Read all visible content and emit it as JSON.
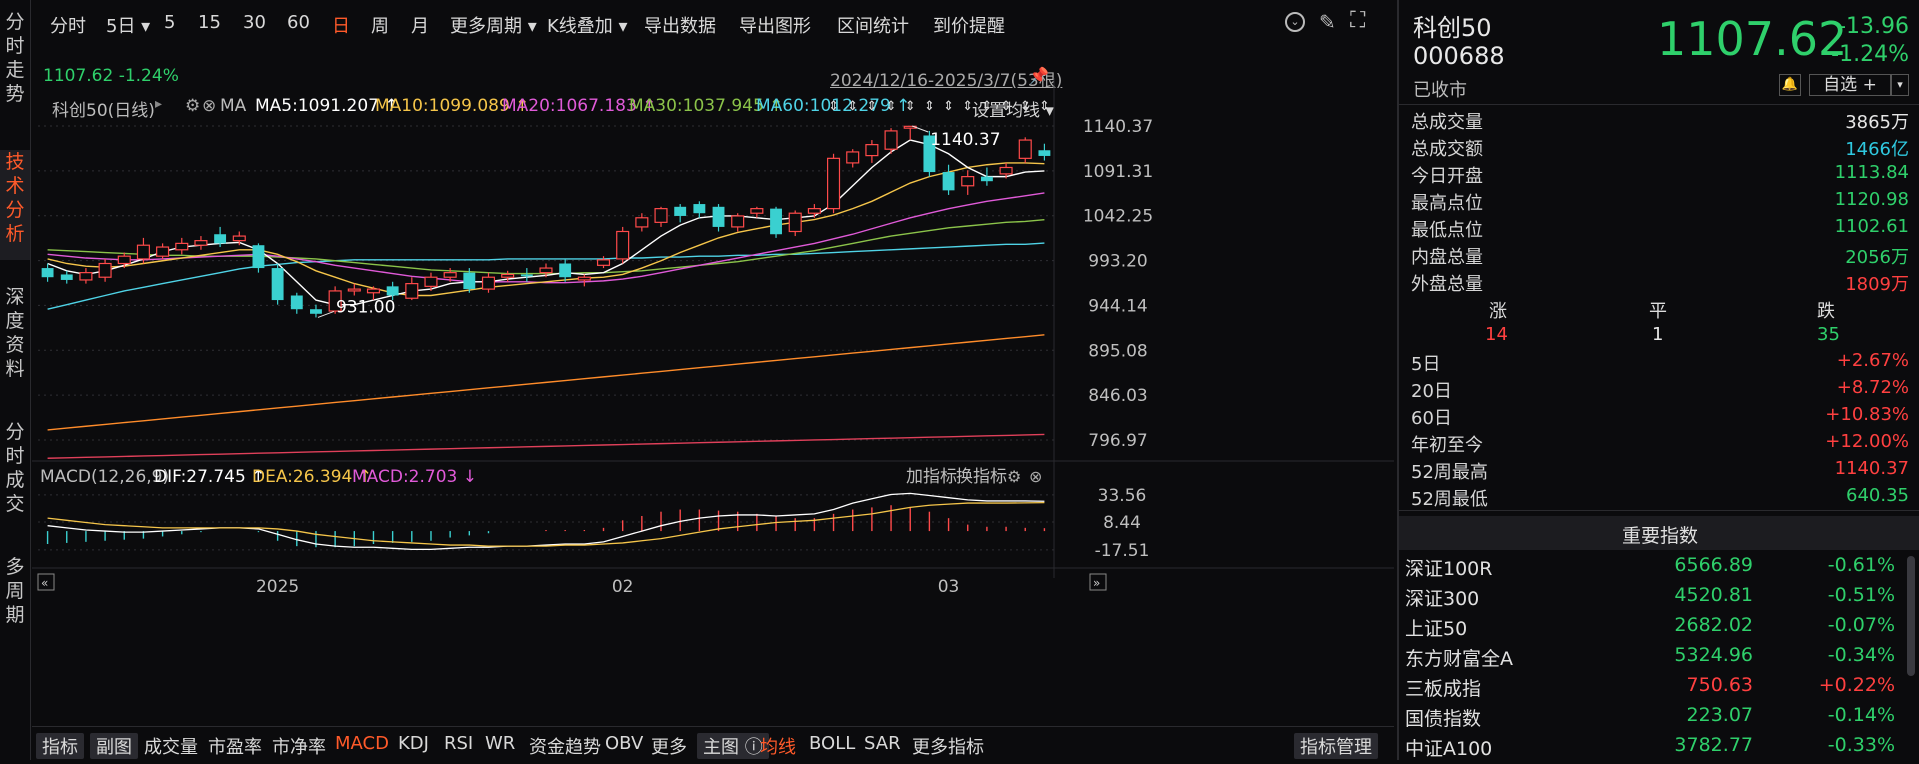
{
  "left_tabs": [
    "分时走势",
    "技术分析",
    "深度资料",
    "分时成交",
    "多周期"
  ],
  "toolbar": {
    "items": [
      "分时",
      "5日 ▾",
      "5",
      "15",
      "30",
      "60",
      "日",
      "周",
      "月",
      "更多周期 ▾",
      "K线叠加 ▾",
      "导出数据",
      "导出图形",
      "区间统计",
      "到价提醒"
    ],
    "active": "日"
  },
  "legend": {
    "name": "科创50(日线)",
    "ma_label": "MA",
    "ma5": "MA5:1091.207 ↑",
    "ma10": "MA10:1099.089 ↑",
    "ma20": "MA20:1067.183 ↑",
    "ma30": "MA30:1037.945 ↑",
    "ma60": "MA60:1012.279 ↑",
    "setting": "设置均线 ▾",
    "last": "1107.62  -1.24%",
    "range": "2024/12/16-2025/3/7(53根)",
    "colors": {
      "ma5": "#ffffff",
      "ma10": "#f5c54a",
      "ma20": "#e05ad8",
      "ma30": "#8bc34a",
      "ma60": "#4fd3e6",
      "ma120": "#ff8c2a",
      "ma250": "#e0405a"
    }
  },
  "chart_data": {
    "type": "candlestick",
    "y_ticks": [
      "1140.37",
      "1091.31",
      "1042.25",
      "993.20",
      "944.14",
      "895.08",
      "846.03",
      "796.97"
    ],
    "ylim": [
      796.97,
      1140.37
    ],
    "x_labels": [
      "2025",
      "02",
      "03"
    ],
    "annotations": {
      "high": "1140.37",
      "low": "931.00"
    },
    "candles": [
      [
        985,
        975,
        970,
        990
      ],
      [
        978,
        972,
        968,
        982
      ],
      [
        972,
        980,
        968,
        985
      ],
      [
        975,
        990,
        970,
        995
      ],
      [
        990,
        998,
        985,
        1002
      ],
      [
        995,
        1010,
        990,
        1018
      ],
      [
        998,
        1008,
        995,
        1012
      ],
      [
        1005,
        1012,
        1000,
        1018
      ],
      [
        1010,
        1015,
        1005,
        1020
      ],
      [
        1022,
        1012,
        1008,
        1030
      ],
      [
        1015,
        1020,
        1010,
        1025
      ],
      [
        1010,
        985,
        980,
        1012
      ],
      [
        985,
        950,
        945,
        990
      ],
      [
        955,
        940,
        935,
        958
      ],
      [
        940,
        935,
        931,
        945
      ],
      [
        938,
        960,
        935,
        965
      ],
      [
        960,
        962,
        955,
        968
      ],
      [
        958,
        962,
        950,
        965
      ],
      [
        965,
        955,
        950,
        970
      ],
      [
        952,
        968,
        950,
        975
      ],
      [
        965,
        975,
        960,
        980
      ],
      [
        975,
        980,
        970,
        985
      ],
      [
        980,
        962,
        958,
        985
      ],
      [
        962,
        975,
        958,
        980
      ],
      [
        975,
        978,
        970,
        982
      ],
      [
        978,
        976,
        970,
        985
      ],
      [
        980,
        985,
        975,
        990
      ],
      [
        990,
        975,
        970,
        995
      ],
      [
        972,
        975,
        965,
        978
      ],
      [
        988,
        994,
        985,
        998
      ],
      [
        995,
        1025,
        990,
        1030
      ],
      [
        1030,
        1040,
        1025,
        1045
      ],
      [
        1035,
        1050,
        1030,
        1052
      ],
      [
        1052,
        1042,
        1035,
        1055
      ],
      [
        1055,
        1045,
        1040,
        1058
      ],
      [
        1052,
        1030,
        1025,
        1055
      ],
      [
        1030,
        1042,
        1025,
        1045
      ],
      [
        1045,
        1050,
        1040,
        1052
      ],
      [
        1050,
        1022,
        1018,
        1052
      ],
      [
        1025,
        1045,
        1020,
        1048
      ],
      [
        1045,
        1050,
        1040,
        1055
      ],
      [
        1050,
        1105,
        1045,
        1110
      ],
      [
        1100,
        1112,
        1095,
        1115
      ],
      [
        1108,
        1120,
        1100,
        1125
      ],
      [
        1115,
        1135,
        1110,
        1138
      ],
      [
        1138,
        1140,
        1125,
        1140.37
      ],
      [
        1130,
        1090,
        1085,
        1135
      ],
      [
        1090,
        1070,
        1065,
        1098
      ],
      [
        1075,
        1085,
        1065,
        1092
      ],
      [
        1085,
        1080,
        1075,
        1095
      ],
      [
        1088,
        1095,
        1083,
        1100
      ],
      [
        1105,
        1125,
        1100,
        1128
      ],
      [
        1113.84,
        1107.62,
        1102.61,
        1120.98
      ]
    ],
    "ma5": [
      990,
      982,
      978,
      982,
      988,
      995,
      1003,
      1008,
      1010,
      1012,
      1013,
      1005,
      990,
      970,
      950,
      945,
      945,
      950,
      955,
      960,
      962,
      968,
      970,
      970,
      973,
      975,
      977,
      980,
      978,
      980,
      990,
      1005,
      1020,
      1032,
      1040,
      1042,
      1042,
      1040,
      1038,
      1040,
      1042,
      1055,
      1075,
      1095,
      1112,
      1125,
      1120,
      1110,
      1095,
      1085,
      1085,
      1090,
      1091.2
    ],
    "ma10": [
      995,
      990,
      987,
      986,
      987,
      990,
      993,
      996,
      999,
      1002,
      1005,
      1005,
      1000,
      992,
      982,
      975,
      968,
      963,
      958,
      955,
      955,
      958,
      961,
      964,
      966,
      968,
      970,
      972,
      974,
      975,
      978,
      985,
      993,
      1002,
      1010,
      1018,
      1024,
      1028,
      1032,
      1035,
      1038,
      1043,
      1050,
      1058,
      1068,
      1078,
      1085,
      1090,
      1095,
      1098,
      1100,
      1100,
      1099.1
    ],
    "ma20": [
      1000,
      998,
      996,
      995,
      994,
      994,
      995,
      996,
      997,
      998,
      999,
      1000,
      998,
      995,
      992,
      988,
      985,
      982,
      979,
      976,
      974,
      972,
      970,
      970,
      970,
      970,
      969,
      969,
      970,
      971,
      973,
      976,
      980,
      984,
      988,
      992,
      996,
      1000,
      1004,
      1008,
      1012,
      1017,
      1022,
      1028,
      1034,
      1040,
      1045,
      1050,
      1054,
      1058,
      1061,
      1064,
      1067.2
    ],
    "ma30": [
      1005,
      1004,
      1003,
      1002,
      1001,
      1000,
      999,
      999,
      998,
      998,
      998,
      998,
      997,
      996,
      995,
      993,
      991,
      989,
      987,
      985,
      983,
      982,
      981,
      980,
      979,
      979,
      979,
      979,
      980,
      980,
      981,
      982,
      984,
      986,
      988,
      990,
      992,
      995,
      998,
      1001,
      1004,
      1008,
      1012,
      1016,
      1020,
      1023,
      1026,
      1029,
      1031,
      1033,
      1035,
      1036,
      1037.9
    ],
    "ma60": [
      940,
      945,
      950,
      955,
      960,
      964,
      968,
      972,
      976,
      980,
      984,
      987,
      989,
      991,
      992,
      993,
      994,
      994,
      994,
      994,
      994,
      994,
      994,
      994,
      995,
      995,
      995,
      995,
      995,
      995,
      996,
      996,
      997,
      997,
      998,
      998,
      999,
      999,
      1000,
      1000,
      1001,
      1002,
      1003,
      1004,
      1005,
      1006,
      1007,
      1008,
      1009,
      1010,
      1011,
      1011,
      1012.3
    ],
    "ma120": [
      808,
      810,
      812,
      814,
      816,
      818,
      820,
      822,
      824,
      826,
      828,
      830,
      832,
      834,
      836,
      838,
      840,
      842,
      844,
      846,
      848,
      850,
      852,
      854,
      856,
      858,
      860,
      862,
      864,
      866,
      868,
      870,
      872,
      874,
      876,
      878,
      880,
      882,
      884,
      886,
      888,
      890,
      892,
      894,
      896,
      898,
      900,
      902,
      904,
      906,
      908,
      910,
      912
    ],
    "ma250": [
      777,
      777.5,
      778,
      778.5,
      779,
      779.5,
      780,
      780.5,
      781,
      781.5,
      782,
      782.5,
      783,
      783.5,
      784,
      784.5,
      785,
      785.5,
      786,
      786.5,
      787,
      787.5,
      788,
      788.5,
      789,
      789.5,
      790,
      790.5,
      791,
      791.5,
      792,
      792.5,
      793,
      793.5,
      794,
      794.5,
      795,
      795.5,
      796,
      796.5,
      797,
      797.5,
      798,
      798.5,
      799,
      799.5,
      800,
      800.5,
      801,
      801.5,
      802,
      802.5,
      803
    ],
    "macd": {
      "label": "MACD(12,26,9)",
      "dif": "DIF:27.745 ↑",
      "dea": "DEA:26.394 ↑",
      "macd": "MACD:2.703 ↓",
      "tools": [
        "加指标",
        "换指标"
      ],
      "y_ticks": [
        "33.56",
        "8.44",
        "-17.51"
      ],
      "ylim": [
        -25,
        40
      ],
      "dif_values": [
        5,
        3,
        1,
        0,
        -1,
        -1,
        0,
        1,
        2,
        3,
        3,
        2,
        -3,
        -8,
        -12,
        -14,
        -15,
        -15,
        -16,
        -17,
        -17,
        -16,
        -15,
        -15,
        -14,
        -14,
        -13,
        -12,
        -12,
        -10,
        -5,
        0,
        5,
        9,
        12,
        14,
        15,
        15,
        14,
        15,
        16,
        20,
        26,
        30,
        34,
        35,
        33,
        31,
        29,
        28,
        28,
        28,
        27.7
      ],
      "dea_values": [
        12,
        10,
        8,
        6,
        5,
        4,
        3,
        3,
        3,
        3,
        3,
        3,
        2,
        0,
        -3,
        -5,
        -7,
        -9,
        -10,
        -11,
        -12,
        -13,
        -13,
        -14,
        -14,
        -14,
        -14,
        -13,
        -13,
        -12,
        -11,
        -9,
        -7,
        -4,
        -1,
        2,
        4,
        6,
        8,
        9,
        10,
        12,
        14,
        16,
        19,
        22,
        24,
        25,
        26,
        26,
        26,
        26.2,
        26.4
      ],
      "hist": [
        -12,
        -11,
        -10,
        -9,
        -8,
        -7,
        -5,
        -3,
        -1,
        0,
        0,
        -1,
        -9,
        -14,
        -15,
        -15,
        -14,
        -12,
        -11,
        -10,
        -9,
        -6,
        -4,
        -2,
        0,
        0,
        1,
        1,
        1,
        3,
        10,
        14,
        18,
        20,
        20,
        19,
        18,
        16,
        14,
        12,
        12,
        16,
        20,
        22,
        24,
        22,
        18,
        12,
        6,
        4,
        4,
        3,
        2.7
      ]
    }
  },
  "bottom_bar": {
    "items": [
      "指标",
      "副图",
      "成交量",
      "市盈率",
      "市净率",
      "MACD",
      "KDJ",
      "RSI",
      "WR",
      "资金趋势",
      "OBV",
      "更多",
      "主图 ⓘ",
      "均线",
      "BOLL",
      "SAR",
      "更多指标"
    ],
    "manage": "指标管理"
  },
  "right": {
    "name": "科创50",
    "code": "000688",
    "status": "已收市",
    "price": "1107.62",
    "change": "-13.96",
    "change_pct": "-1.24%",
    "watch": "自选 +",
    "stats": [
      {
        "k": "总成交量",
        "v": "3865万",
        "c": "white"
      },
      {
        "k": "总成交额",
        "v": "1466亿",
        "c": "cyan"
      },
      {
        "k": "今日开盘",
        "v": "1113.84",
        "c": "green"
      },
      {
        "k": "最高点位",
        "v": "1120.98",
        "c": "green"
      },
      {
        "k": "最低点位",
        "v": "1102.61",
        "c": "green"
      },
      {
        "k": "内盘总量",
        "v": "2056万",
        "c": "green"
      },
      {
        "k": "外盘总量",
        "v": "1809万",
        "c": "red"
      }
    ],
    "breadth": {
      "up_label": "涨",
      "flat_label": "平",
      "down_label": "跌",
      "up": "14",
      "flat": "1",
      "down": "35"
    },
    "perf": [
      {
        "k": "5日",
        "v": "+2.67%",
        "c": "red"
      },
      {
        "k": "20日",
        "v": "+8.72%",
        "c": "red"
      },
      {
        "k": "60日",
        "v": "+10.83%",
        "c": "red"
      },
      {
        "k": "年初至今",
        "v": "+12.00%",
        "c": "red"
      },
      {
        "k": "52周最高",
        "v": "1140.37",
        "c": "red"
      },
      {
        "k": "52周最低",
        "v": "640.35",
        "c": "green"
      }
    ],
    "index_title": "重要指数",
    "indices": [
      {
        "n": "深证100R",
        "p": "6566.89",
        "c": "-0.61%",
        "pc": "green",
        "cc": "green"
      },
      {
        "n": "深证300",
        "p": "4520.81",
        "c": "-0.51%",
        "pc": "green",
        "cc": "green"
      },
      {
        "n": "上证50",
        "p": "2682.02",
        "c": "-0.07%",
        "pc": "green",
        "cc": "green"
      },
      {
        "n": "东方财富全A",
        "p": "5324.96",
        "c": "-0.34%",
        "pc": "green",
        "cc": "green"
      },
      {
        "n": "三板成指",
        "p": "750.63",
        "c": "+0.22%",
        "pc": "red",
        "cc": "red"
      },
      {
        "n": "国债指数",
        "p": "223.07",
        "c": "-0.14%",
        "pc": "green",
        "cc": "green"
      },
      {
        "n": "中证A100",
        "p": "3782.77",
        "c": "-0.33%",
        "pc": "green",
        "cc": "green"
      }
    ]
  }
}
